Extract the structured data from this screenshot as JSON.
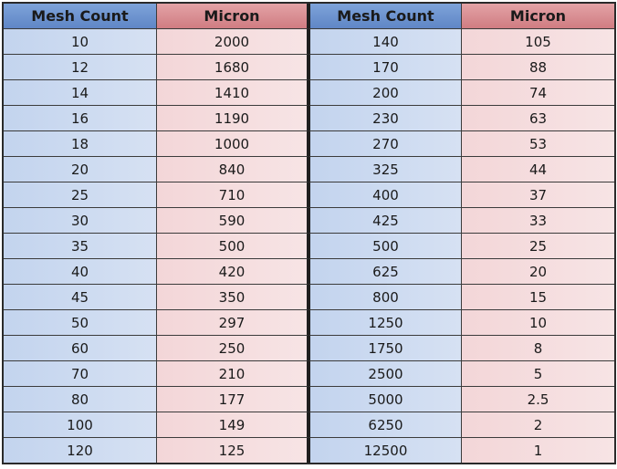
{
  "table": {
    "headers": [
      "Mesh Count",
      "Micron",
      "Mesh Count",
      "Micron"
    ],
    "rows": [
      [
        "10",
        "2000",
        "140",
        "105"
      ],
      [
        "12",
        "1680",
        "170",
        "88"
      ],
      [
        "14",
        "1410",
        "200",
        "74"
      ],
      [
        "16",
        "1190",
        "230",
        "63"
      ],
      [
        "18",
        "1000",
        "270",
        "53"
      ],
      [
        "20",
        "840",
        "325",
        "44"
      ],
      [
        "25",
        "710",
        "400",
        "37"
      ],
      [
        "30",
        "590",
        "425",
        "33"
      ],
      [
        "35",
        "500",
        "500",
        "25"
      ],
      [
        "40",
        "420",
        "625",
        "20"
      ],
      [
        "45",
        "350",
        "800",
        "15"
      ],
      [
        "50",
        "297",
        "1250",
        "10"
      ],
      [
        "60",
        "250",
        "1750",
        "8"
      ],
      [
        "70",
        "210",
        "2500",
        "5"
      ],
      [
        "80",
        "177",
        "5000",
        "2.5"
      ],
      [
        "100",
        "149",
        "6250",
        "2"
      ],
      [
        "120",
        "125",
        "12500",
        "1"
      ]
    ]
  },
  "colors": {
    "mesh_header": "#6a8fcd",
    "micron_header": "#d98c91",
    "mesh_cell": "#cddbf0",
    "micron_cell": "#f5dddf",
    "border": "#2a2a2a"
  }
}
